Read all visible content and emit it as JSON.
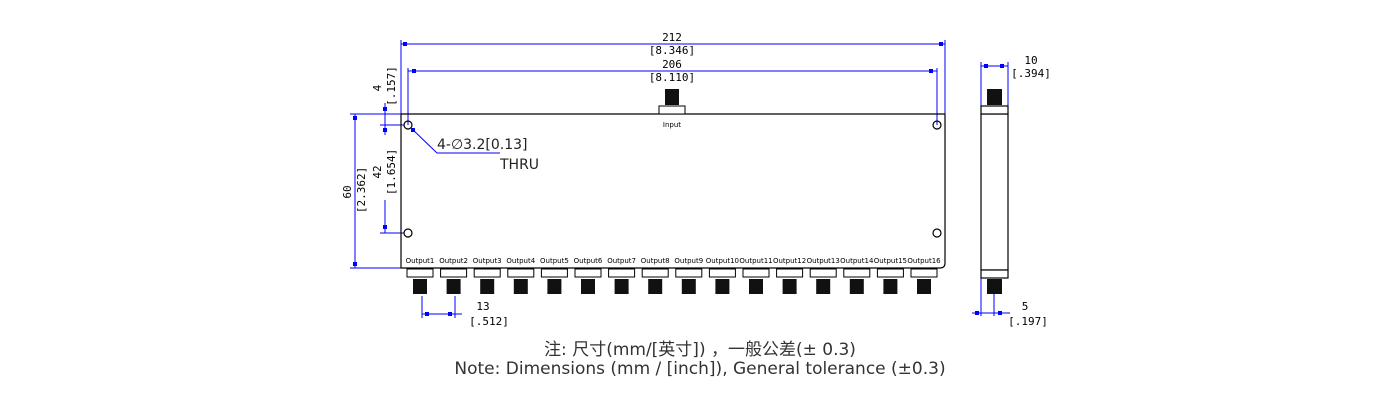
{
  "dimensions": {
    "overall_length": {
      "value": "212",
      "inch": "[8.346]"
    },
    "hole_spacing_length": {
      "value": "206",
      "inch": "[8.110]"
    },
    "hole_edge_offset": {
      "value": "4",
      "inch": "[.157]"
    },
    "overall_width": {
      "value": "60",
      "inch": "[2.362]"
    },
    "hole_spacing_width": {
      "value": "42",
      "inch": "[1.654]"
    },
    "connector_pitch": {
      "value": "13",
      "inch": "[.512]"
    },
    "thickness": {
      "value": "10",
      "inch": "[.394]"
    },
    "connector_offset": {
      "value": "5",
      "inch": "[.197]"
    }
  },
  "hole_callout": {
    "spec": "4-∅3.2[0.13]",
    "note": "THRU"
  },
  "input_label": "Input",
  "outputs": [
    "Output1",
    "Output2",
    "Output3",
    "Output4",
    "Output5",
    "Output6",
    "Output7",
    "Output8",
    "Output9",
    "Output10",
    "Output11",
    "Output12",
    "Output13",
    "Output14",
    "Output15",
    "Output16"
  ],
  "notes": {
    "chinese": "注: 尺寸(mm/[英寸]) ，一般公差(± 0.3)",
    "english": "Note: Dimensions (mm / [inch]), General tolerance (±0.3)"
  },
  "colors": {
    "dimension": "#0000ff",
    "outline": "#000000"
  }
}
